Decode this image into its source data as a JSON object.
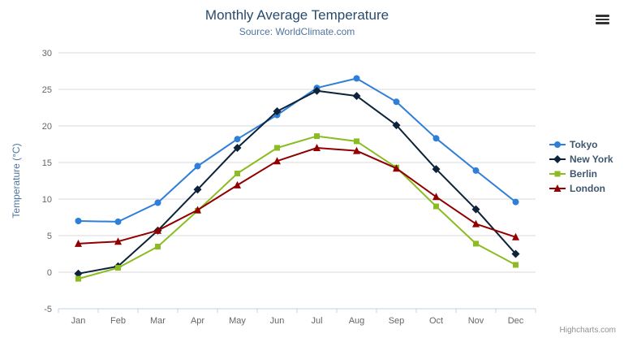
{
  "header": {
    "title": "Monthly Average Temperature",
    "subtitle": "Source: WorldClimate.com"
  },
  "credits": {
    "label": "Highcharts.com"
  },
  "colors": {
    "title": "#274b6d",
    "subtitle": "#4d759e",
    "axis_label": "#666666",
    "axis_title": "#4d759e",
    "grid": "#d8d8d8",
    "axis_line": "#c0d0e0",
    "legend_text": "#3e576f"
  },
  "chart_data": {
    "type": "line",
    "title": "Monthly Average Temperature",
    "subtitle": "Source: WorldClimate.com",
    "categories": [
      "Jan",
      "Feb",
      "Mar",
      "Apr",
      "May",
      "Jun",
      "Jul",
      "Aug",
      "Sep",
      "Oct",
      "Nov",
      "Dec"
    ],
    "xlabel": "",
    "ylabel": "Temperature (°C)",
    "ylim": [
      -5,
      30
    ],
    "ytick_interval": 5,
    "grid": true,
    "legend_position": "right",
    "series": [
      {
        "name": "Tokyo",
        "color": "#2f7ed8",
        "marker": "circle",
        "values": [
          7.0,
          6.9,
          9.5,
          14.5,
          18.2,
          21.5,
          25.2,
          26.5,
          23.3,
          18.3,
          13.9,
          9.6
        ]
      },
      {
        "name": "New York",
        "color": "#0d233a",
        "marker": "diamond",
        "values": [
          -0.2,
          0.8,
          5.7,
          11.3,
          17.0,
          22.0,
          24.8,
          24.1,
          20.1,
          14.1,
          8.6,
          2.5
        ]
      },
      {
        "name": "Berlin",
        "color": "#8bbc21",
        "marker": "square",
        "values": [
          -0.9,
          0.6,
          3.5,
          8.4,
          13.5,
          17.0,
          18.6,
          17.9,
          14.3,
          9.0,
          3.9,
          1.0
        ]
      },
      {
        "name": "London",
        "color": "#910000",
        "marker": "triangle",
        "values": [
          3.9,
          4.2,
          5.7,
          8.5,
          11.9,
          15.2,
          17.0,
          16.6,
          14.2,
          10.3,
          6.6,
          4.8
        ]
      }
    ]
  }
}
